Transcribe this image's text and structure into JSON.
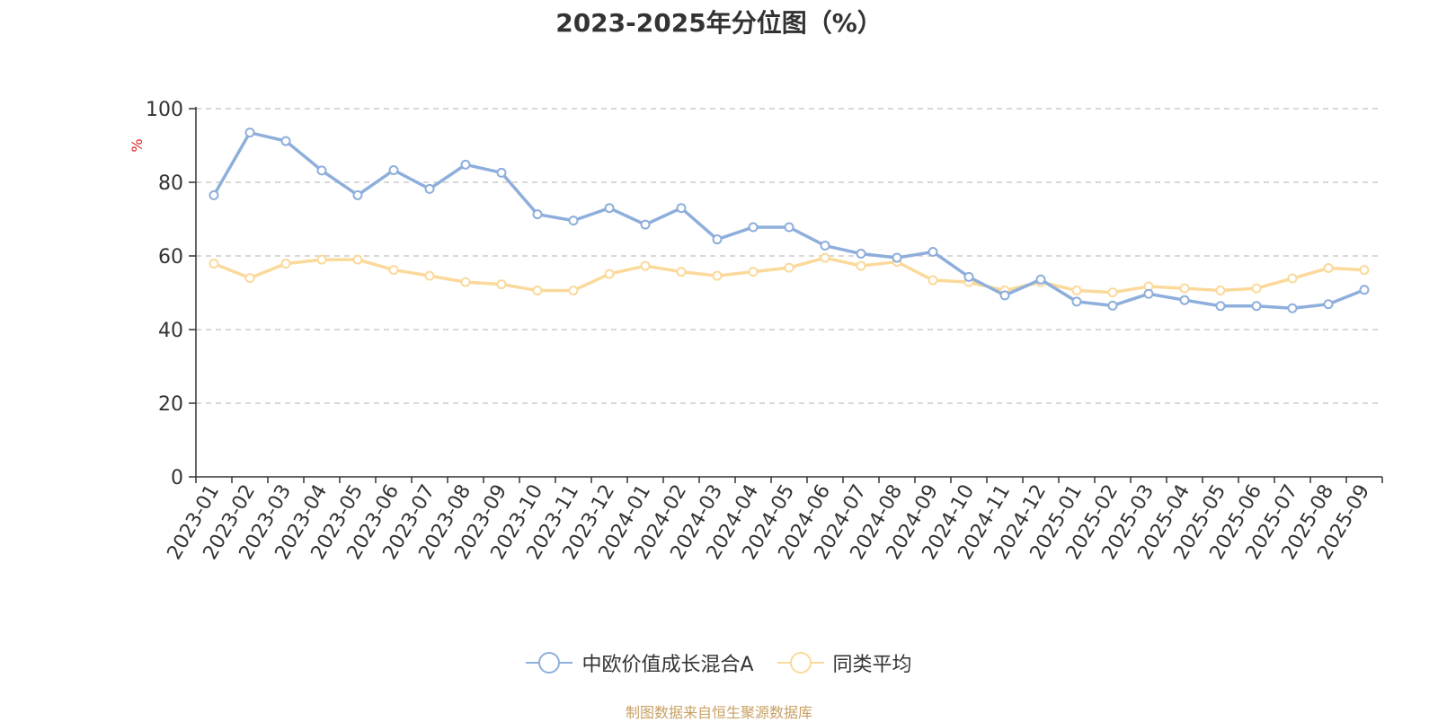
{
  "title": "2023-2025年分位图（%）",
  "source": "制图数据来自恒生聚源数据库",
  "chart_data": {
    "type": "line",
    "title": "2023-2025年分位图（%）",
    "ylabel": "%",
    "ylim": [
      0,
      100
    ],
    "yticks": [
      0,
      20,
      40,
      60,
      80,
      100
    ],
    "grid": true,
    "legend_position": "bottom",
    "categories": [
      "2023-01",
      "2023-02",
      "2023-03",
      "2023-04",
      "2023-05",
      "2023-06",
      "2023-07",
      "2023-08",
      "2023-09",
      "2023-10",
      "2023-11",
      "2023-12",
      "2024-01",
      "2024-02",
      "2024-03",
      "2024-04",
      "2024-05",
      "2024-06",
      "2024-07",
      "2024-08",
      "2024-09",
      "2024-10",
      "2024-11",
      "2024-12",
      "2025-01",
      "2025-02",
      "2025-03",
      "2025-04",
      "2025-05",
      "2025-06",
      "2025-07",
      "2025-08",
      "2025-09"
    ],
    "series": [
      {
        "name": "中欧价值成长混合A",
        "color": "#8eaedb",
        "values": [
          76.5,
          93.5,
          91.2,
          83.2,
          76.5,
          83.3,
          78.2,
          84.8,
          82.6,
          71.3,
          69.6,
          73.0,
          68.5,
          73.0,
          64.5,
          67.8,
          67.8,
          62.8,
          60.6,
          59.5,
          61.1,
          54.3,
          49.3,
          53.6,
          47.6,
          46.5,
          49.7,
          48.0,
          46.4,
          46.4,
          45.8,
          46.9,
          50.8
        ]
      },
      {
        "name": "同类平均",
        "color": "#fbd99a",
        "values": [
          57.9,
          54.0,
          57.9,
          59.0,
          59.0,
          56.2,
          54.6,
          52.9,
          52.3,
          50.6,
          50.6,
          55.1,
          57.3,
          55.7,
          54.6,
          55.7,
          56.8,
          59.5,
          57.3,
          58.4,
          53.4,
          52.9,
          50.6,
          52.9,
          50.6,
          50.1,
          51.7,
          51.2,
          50.6,
          51.2,
          53.9,
          56.7,
          56.2
        ]
      }
    ]
  }
}
